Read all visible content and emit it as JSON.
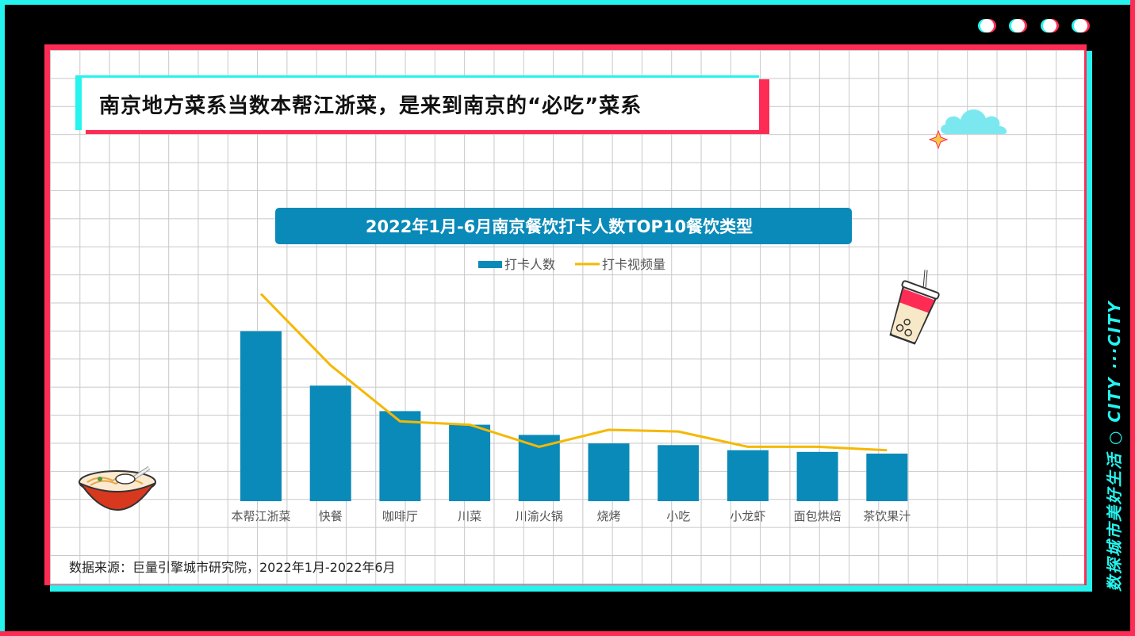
{
  "page": {
    "title": "南京地方菜系当数本帮江浙菜，是来到南京的“必吃”菜系",
    "side_text": "数探城市美好生活 ○ CITY ···CITY",
    "source": "数据来源：巨量引擎城市研究院，2022年1月-2022年6月"
  },
  "chart_data": {
    "type": "bar",
    "title": "2022年1月-6月南京餐饮打卡人数TOP10餐饮类型",
    "categories": [
      "本帮江浙菜",
      "快餐",
      "咖啡厅",
      "川菜",
      "川渝火锅",
      "烧烤",
      "小吃",
      "小龙虾",
      "面包烘焙",
      "茶饮果汁"
    ],
    "series": [
      {
        "name": "打卡人数",
        "type": "bar",
        "color": "#0a8ab8",
        "values": [
          100,
          68,
          53,
          45,
          39,
          34,
          33,
          30,
          29,
          28
        ]
      },
      {
        "name": "打卡视频量",
        "type": "line",
        "color": "#f5b800",
        "values": [
          122,
          80,
          47,
          45,
          32,
          42,
          41,
          32,
          32,
          30
        ]
      }
    ],
    "ylim": [
      0,
      140
    ],
    "legend_position": "top-center",
    "grid": false
  },
  "colors": {
    "accent_cyan": "#25f4ee",
    "accent_red": "#fe2c55",
    "chart_title_bg": "#0a8ab8"
  }
}
